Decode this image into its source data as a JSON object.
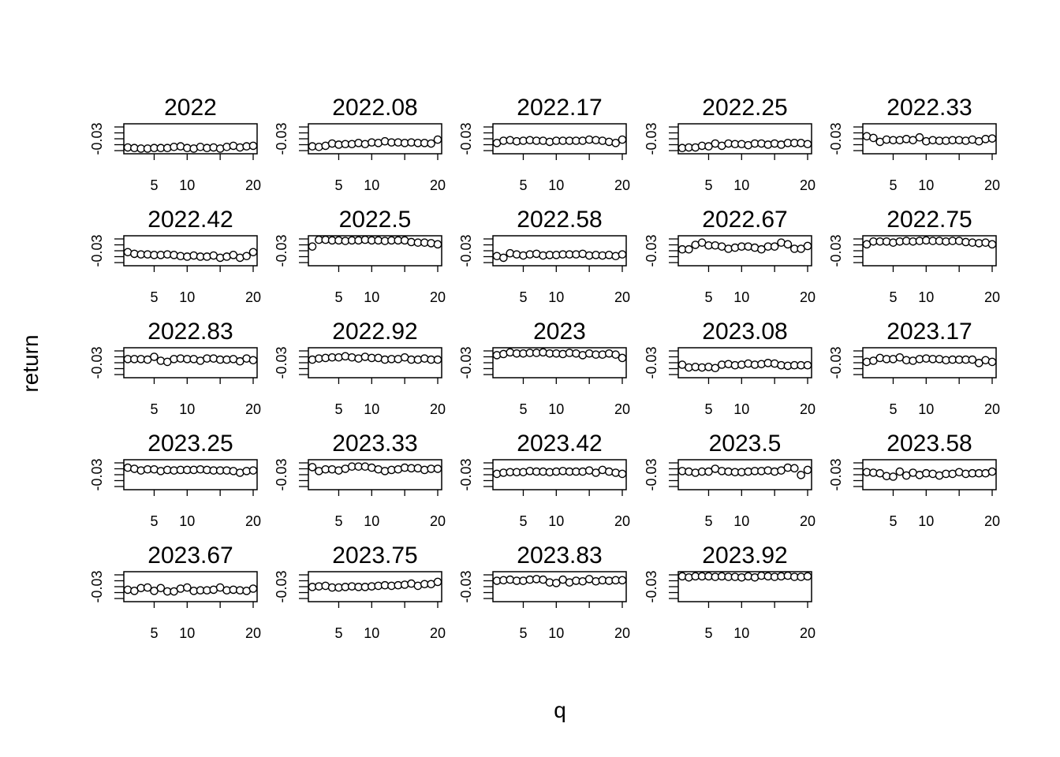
{
  "chart_data": {
    "type": "scatter",
    "layout": "small-multiples",
    "xlabel": "q",
    "ylabel": "return",
    "xlim": [
      1,
      20
    ],
    "ylim": [
      -0.045,
      0.0
    ],
    "x_ticks": [
      5,
      10,
      20
    ],
    "y_ticks": [
      -0.03
    ],
    "y_tick_label": "-0.03",
    "grid": false,
    "x": [
      1,
      2,
      3,
      4,
      5,
      6,
      7,
      8,
      9,
      10,
      11,
      12,
      13,
      14,
      15,
      16,
      17,
      18,
      19,
      20
    ],
    "panels": [
      {
        "title": "2022",
        "values": [
          -0.038,
          -0.039,
          -0.04,
          -0.04,
          -0.039,
          -0.039,
          -0.039,
          -0.037,
          -0.036,
          -0.039,
          -0.04,
          -0.037,
          -0.039,
          -0.038,
          -0.04,
          -0.037,
          -0.035,
          -0.038,
          -0.036,
          -0.035
        ]
      },
      {
        "title": "2022.08",
        "values": [
          -0.036,
          -0.037,
          -0.035,
          -0.031,
          -0.033,
          -0.032,
          -0.032,
          -0.03,
          -0.032,
          -0.029,
          -0.03,
          -0.027,
          -0.029,
          -0.029,
          -0.03,
          -0.029,
          -0.03,
          -0.03,
          -0.031,
          -0.024
        ]
      },
      {
        "title": "2022.17",
        "values": [
          -0.03,
          -0.026,
          -0.025,
          -0.027,
          -0.026,
          -0.025,
          -0.026,
          -0.026,
          -0.028,
          -0.026,
          -0.026,
          -0.026,
          -0.026,
          -0.026,
          -0.024,
          -0.025,
          -0.026,
          -0.028,
          -0.03,
          -0.024
        ]
      },
      {
        "title": "2022.25",
        "values": [
          -0.039,
          -0.038,
          -0.038,
          -0.035,
          -0.036,
          -0.031,
          -0.035,
          -0.031,
          -0.032,
          -0.032,
          -0.034,
          -0.031,
          -0.031,
          -0.033,
          -0.031,
          -0.033,
          -0.03,
          -0.03,
          -0.03,
          -0.032
        ]
      },
      {
        "title": "2022.33",
        "values": [
          -0.018,
          -0.021,
          -0.028,
          -0.024,
          -0.025,
          -0.025,
          -0.023,
          -0.025,
          -0.02,
          -0.027,
          -0.025,
          -0.026,
          -0.026,
          -0.025,
          -0.025,
          -0.026,
          -0.024,
          -0.027,
          -0.023,
          -0.022
        ]
      },
      {
        "title": "2022.42",
        "values": [
          -0.025,
          -0.028,
          -0.029,
          -0.029,
          -0.03,
          -0.03,
          -0.029,
          -0.03,
          -0.032,
          -0.033,
          -0.031,
          -0.033,
          -0.033,
          -0.031,
          -0.035,
          -0.033,
          -0.03,
          -0.035,
          -0.032,
          -0.025
        ]
      },
      {
        "title": "2022.5",
        "values": [
          -0.015,
          -0.003,
          -0.003,
          -0.004,
          -0.004,
          -0.005,
          -0.004,
          -0.004,
          -0.003,
          -0.004,
          -0.004,
          -0.005,
          -0.004,
          -0.004,
          -0.004,
          -0.007,
          -0.008,
          -0.008,
          -0.009,
          -0.011
        ]
      },
      {
        "title": "2022.58",
        "values": [
          -0.032,
          -0.035,
          -0.027,
          -0.029,
          -0.031,
          -0.029,
          -0.028,
          -0.031,
          -0.03,
          -0.03,
          -0.029,
          -0.029,
          -0.029,
          -0.028,
          -0.031,
          -0.03,
          -0.031,
          -0.03,
          -0.032,
          -0.029
        ]
      },
      {
        "title": "2022.67",
        "values": [
          -0.02,
          -0.02,
          -0.012,
          -0.008,
          -0.013,
          -0.013,
          -0.015,
          -0.019,
          -0.017,
          -0.015,
          -0.015,
          -0.017,
          -0.02,
          -0.015,
          -0.015,
          -0.008,
          -0.011,
          -0.019,
          -0.019,
          -0.014
        ]
      },
      {
        "title": "2022.75",
        "values": [
          -0.011,
          -0.006,
          -0.006,
          -0.006,
          -0.008,
          -0.006,
          -0.005,
          -0.006,
          -0.005,
          -0.004,
          -0.005,
          -0.005,
          -0.006,
          -0.005,
          -0.005,
          -0.007,
          -0.008,
          -0.009,
          -0.008,
          -0.011
        ]
      },
      {
        "title": "2022.83",
        "values": [
          -0.016,
          -0.016,
          -0.016,
          -0.017,
          -0.012,
          -0.019,
          -0.021,
          -0.016,
          -0.015,
          -0.016,
          -0.016,
          -0.019,
          -0.015,
          -0.015,
          -0.017,
          -0.017,
          -0.016,
          -0.02,
          -0.015,
          -0.018
        ]
      },
      {
        "title": "2022.92",
        "values": [
          -0.017,
          -0.015,
          -0.014,
          -0.013,
          -0.013,
          -0.011,
          -0.013,
          -0.015,
          -0.012,
          -0.014,
          -0.014,
          -0.017,
          -0.016,
          -0.016,
          -0.013,
          -0.017,
          -0.017,
          -0.015,
          -0.017,
          -0.017
        ]
      },
      {
        "title": "2023",
        "values": [
          -0.009,
          -0.007,
          -0.004,
          -0.006,
          -0.006,
          -0.005,
          -0.005,
          -0.004,
          -0.006,
          -0.006,
          -0.007,
          -0.005,
          -0.006,
          -0.009,
          -0.006,
          -0.008,
          -0.008,
          -0.006,
          -0.008,
          -0.014
        ]
      },
      {
        "title": "2023.08",
        "values": [
          -0.026,
          -0.031,
          -0.03,
          -0.031,
          -0.03,
          -0.032,
          -0.026,
          -0.025,
          -0.027,
          -0.026,
          -0.024,
          -0.026,
          -0.025,
          -0.023,
          -0.024,
          -0.027,
          -0.028,
          -0.027,
          -0.027,
          -0.027
        ]
      },
      {
        "title": "2023.17",
        "values": [
          -0.021,
          -0.019,
          -0.014,
          -0.016,
          -0.016,
          -0.013,
          -0.018,
          -0.019,
          -0.016,
          -0.015,
          -0.016,
          -0.016,
          -0.018,
          -0.017,
          -0.017,
          -0.017,
          -0.017,
          -0.023,
          -0.018,
          -0.021
        ]
      },
      {
        "title": "2023.25",
        "values": [
          -0.01,
          -0.012,
          -0.015,
          -0.013,
          -0.013,
          -0.016,
          -0.014,
          -0.015,
          -0.014,
          -0.014,
          -0.014,
          -0.013,
          -0.014,
          -0.015,
          -0.015,
          -0.015,
          -0.016,
          -0.019,
          -0.016,
          -0.015
        ]
      },
      {
        "title": "2023.33",
        "values": [
          -0.009,
          -0.016,
          -0.013,
          -0.013,
          -0.015,
          -0.012,
          -0.008,
          -0.008,
          -0.008,
          -0.01,
          -0.013,
          -0.016,
          -0.014,
          -0.013,
          -0.01,
          -0.011,
          -0.011,
          -0.014,
          -0.012,
          -0.012
        ]
      },
      {
        "title": "2023.42",
        "values": [
          -0.021,
          -0.019,
          -0.018,
          -0.018,
          -0.018,
          -0.016,
          -0.017,
          -0.017,
          -0.018,
          -0.017,
          -0.016,
          -0.017,
          -0.017,
          -0.017,
          -0.015,
          -0.019,
          -0.014,
          -0.017,
          -0.019,
          -0.021
        ]
      },
      {
        "title": "2023.5",
        "values": [
          -0.016,
          -0.017,
          -0.019,
          -0.017,
          -0.017,
          -0.012,
          -0.016,
          -0.017,
          -0.018,
          -0.018,
          -0.017,
          -0.016,
          -0.016,
          -0.015,
          -0.017,
          -0.015,
          -0.01,
          -0.011,
          -0.023,
          -0.014
        ]
      },
      {
        "title": "2023.58",
        "values": [
          -0.018,
          -0.019,
          -0.02,
          -0.025,
          -0.026,
          -0.017,
          -0.024,
          -0.019,
          -0.023,
          -0.02,
          -0.021,
          -0.024,
          -0.021,
          -0.021,
          -0.018,
          -0.021,
          -0.02,
          -0.02,
          -0.02,
          -0.017
        ]
      },
      {
        "title": "2023.67",
        "values": [
          -0.028,
          -0.03,
          -0.025,
          -0.024,
          -0.03,
          -0.025,
          -0.031,
          -0.031,
          -0.026,
          -0.024,
          -0.03,
          -0.029,
          -0.029,
          -0.028,
          -0.024,
          -0.029,
          -0.028,
          -0.029,
          -0.03,
          -0.026
        ]
      },
      {
        "title": "2023.75",
        "values": [
          -0.023,
          -0.022,
          -0.021,
          -0.024,
          -0.024,
          -0.023,
          -0.022,
          -0.023,
          -0.023,
          -0.022,
          -0.021,
          -0.02,
          -0.021,
          -0.02,
          -0.019,
          -0.017,
          -0.021,
          -0.018,
          -0.018,
          -0.014
        ]
      },
      {
        "title": "2023.83",
        "values": [
          -0.012,
          -0.011,
          -0.01,
          -0.012,
          -0.012,
          -0.01,
          -0.009,
          -0.01,
          -0.015,
          -0.016,
          -0.01,
          -0.015,
          -0.012,
          -0.013,
          -0.009,
          -0.013,
          -0.011,
          -0.012,
          -0.011,
          -0.011
        ]
      },
      {
        "title": "2023.92",
        "values": [
          -0.004,
          -0.006,
          -0.004,
          -0.004,
          -0.004,
          -0.005,
          -0.004,
          -0.005,
          -0.005,
          -0.006,
          -0.004,
          -0.006,
          -0.003,
          -0.004,
          -0.005,
          -0.004,
          -0.003,
          -0.005,
          -0.005,
          -0.004
        ]
      }
    ]
  }
}
